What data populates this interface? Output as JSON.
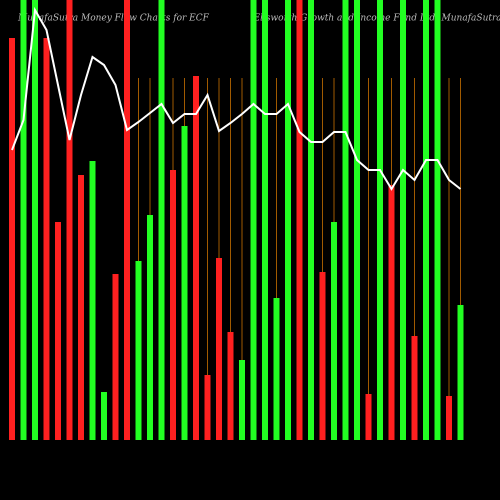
{
  "chart_data": {
    "type": "bar",
    "title": "MunafaSutra Money Flow Charts for ECF",
    "subtitle": "(Ellsworth Growth and Income Fund Ltd) MunafaSutra.com",
    "ylim": [
      0,
      440
    ],
    "values": [
      402,
      440,
      440,
      402,
      218,
      440,
      265,
      279,
      48,
      166,
      440,
      179,
      225,
      440,
      270,
      314,
      364,
      65,
      182,
      108,
      80,
      440,
      440,
      142,
      440,
      440,
      440,
      168,
      218,
      440,
      440,
      46,
      440,
      255,
      440,
      104,
      440,
      440,
      44,
      135
    ],
    "colors": [
      "#ff2020",
      "#22ff22",
      "#22ff22",
      "#ff2020",
      "#ff2020",
      "#ff2020",
      "#ff2020",
      "#22ff22",
      "#22ff22",
      "#ff2020",
      "#ff2020",
      "#22ff22",
      "#22ff22",
      "#22ff22",
      "#ff2020",
      "#22ff22",
      "#ff2020",
      "#ff2020",
      "#ff2020",
      "#ff2020",
      "#22ff22",
      "#22ff22",
      "#22ff22",
      "#22ff22",
      "#22ff22",
      "#ff2020",
      "#22ff22",
      "#ff2020",
      "#22ff22",
      "#22ff22",
      "#22ff22",
      "#ff2020",
      "#22ff22",
      "#ff2020",
      "#22ff22",
      "#ff2020",
      "#22ff22",
      "#22ff22",
      "#ff2020",
      "#22ff22"
    ],
    "line": {
      "color": "#ffffff",
      "values": [
        290,
        320,
        430,
        410,
        355,
        300,
        345,
        383,
        375,
        355,
        310,
        318,
        327,
        336,
        317,
        326,
        326,
        345,
        309,
        317,
        326,
        336,
        326,
        326,
        336,
        308,
        298,
        298,
        308,
        308,
        280,
        270,
        270,
        251,
        270,
        260,
        280,
        280,
        260,
        251
      ]
    }
  }
}
